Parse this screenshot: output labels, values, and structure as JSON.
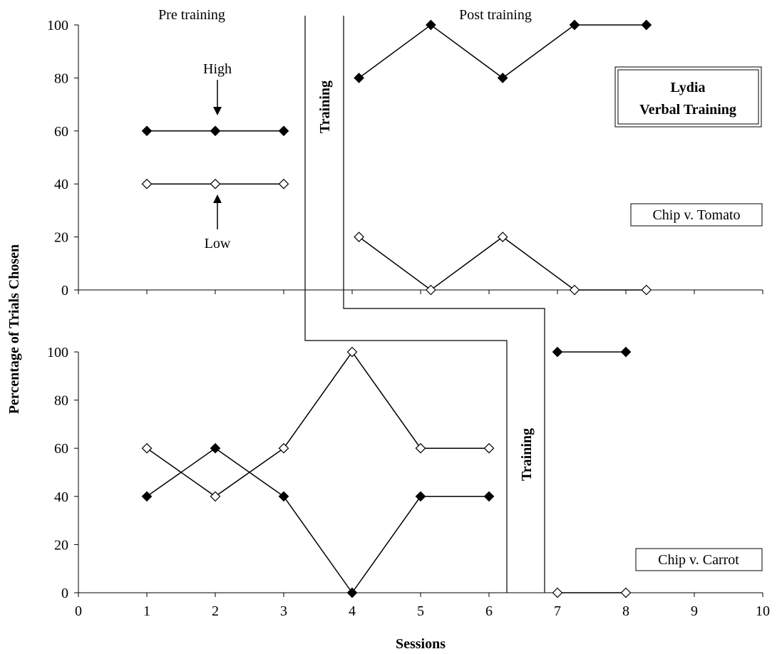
{
  "chart_data": {
    "type": "line",
    "title": "Lydia\nVerbal Training",
    "title_lines": [
      "Lydia",
      "Verbal Training"
    ],
    "xlabel": "Sessions",
    "ylabel": "Percentage of Trials Chosen",
    "xlim": [
      0,
      10
    ],
    "xticks": [
      "0",
      "1",
      "2",
      "3",
      "4",
      "5",
      "6",
      "7",
      "8",
      "9",
      "10"
    ],
    "ylim": [
      0,
      100
    ],
    "yticks": [
      "0",
      "20",
      "40",
      "60",
      "80",
      "100"
    ],
    "grid": false,
    "panels": [
      {
        "name": "Chip v. Tomato",
        "phase_labels": {
          "pre": "Pre training",
          "post": "Post training",
          "training": "Training"
        },
        "annotations": {
          "high": "High",
          "low": "Low"
        },
        "series": [
          {
            "marker": "filled-diamond",
            "segments": [
              [
                [
                  1,
                  60
                ],
                [
                  2,
                  60
                ],
                [
                  3,
                  60
                ]
              ],
              [
                [
                  4.1,
                  80
                ],
                [
                  5.15,
                  100
                ],
                [
                  6.2,
                  80
                ],
                [
                  7.25,
                  100
                ],
                [
                  8.3,
                  100
                ]
              ]
            ]
          },
          {
            "marker": "open-diamond",
            "segments": [
              [
                [
                  1,
                  40
                ],
                [
                  2,
                  40
                ],
                [
                  3,
                  40
                ]
              ],
              [
                [
                  4.1,
                  20
                ],
                [
                  5.15,
                  0
                ],
                [
                  6.2,
                  20
                ],
                [
                  7.25,
                  0
                ],
                [
                  8.3,
                  0
                ]
              ]
            ]
          }
        ]
      },
      {
        "name": "Chip v. Carrot",
        "phase_labels": {
          "training": "Training"
        },
        "series": [
          {
            "marker": "filled-diamond",
            "segments": [
              [
                [
                  1,
                  40
                ],
                [
                  2,
                  60
                ],
                [
                  3,
                  40
                ],
                [
                  4,
                  0
                ],
                [
                  5,
                  40
                ],
                [
                  6,
                  40
                ]
              ],
              [
                [
                  7,
                  100
                ],
                [
                  8,
                  100
                ]
              ]
            ]
          },
          {
            "marker": "open-diamond",
            "segments": [
              [
                [
                  1,
                  60
                ],
                [
                  2,
                  40
                ],
                [
                  3,
                  60
                ],
                [
                  4,
                  100
                ],
                [
                  5,
                  60
                ],
                [
                  6,
                  60
                ]
              ],
              [
                [
                  7,
                  0
                ],
                [
                  8,
                  0
                ]
              ]
            ]
          }
        ]
      }
    ]
  }
}
